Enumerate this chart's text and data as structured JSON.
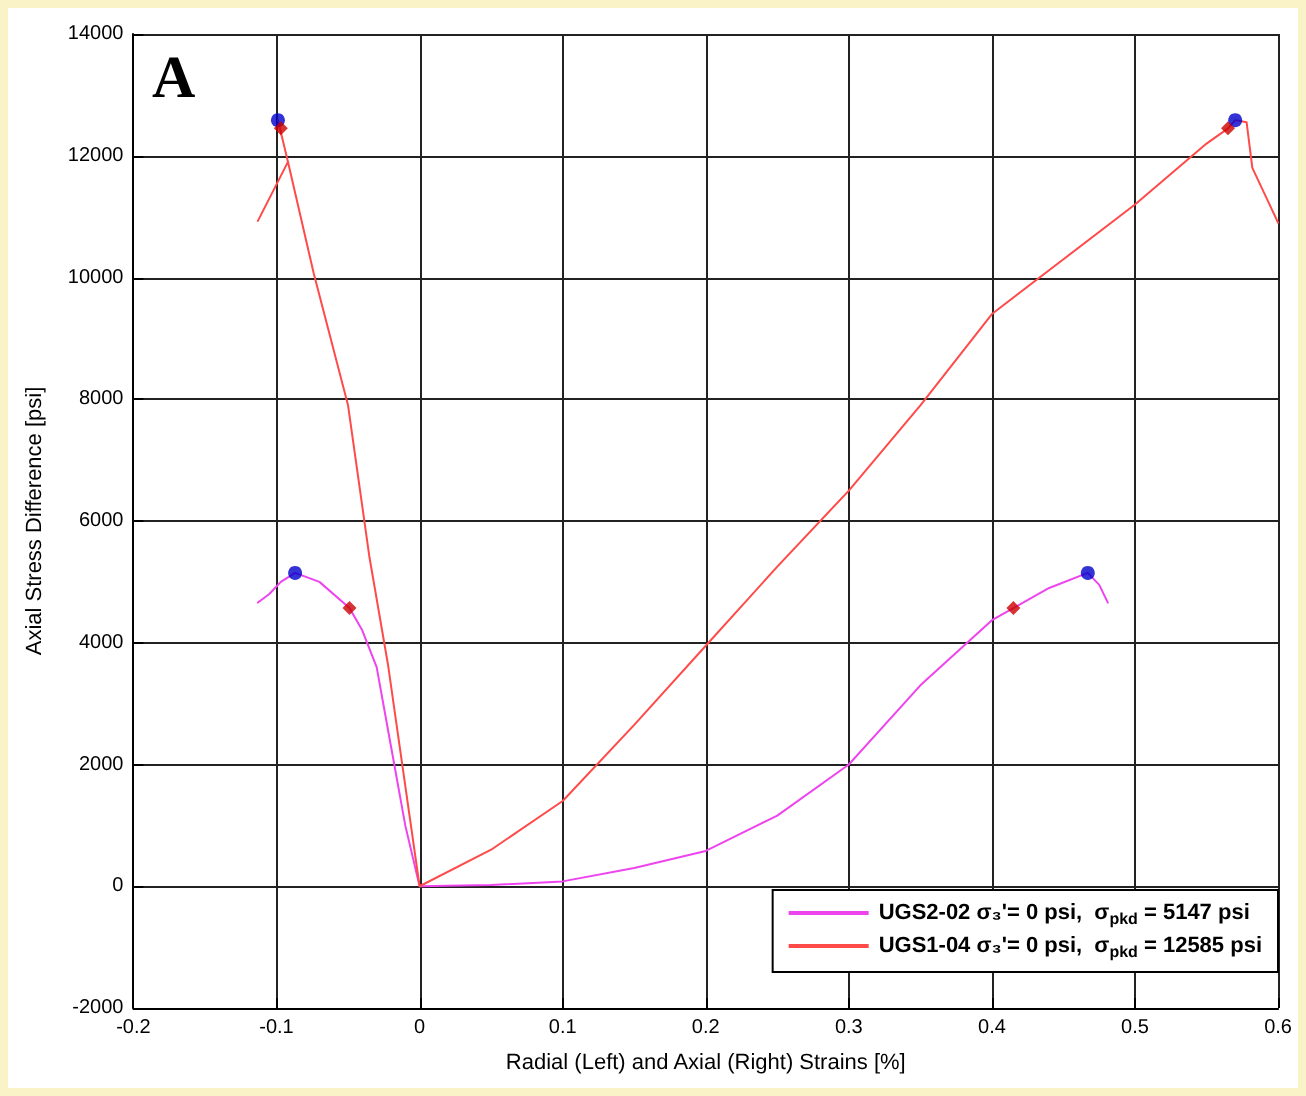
{
  "chart_data": {
    "type": "line",
    "xlabel": "Radial (Left) and Axial (Right) Strains [%]",
    "ylabel": "Axial Stress Difference [psi]",
    "annotations": [
      "A"
    ],
    "xlim": [
      -0.2,
      0.6
    ],
    "xticks": [
      -0.2,
      -0.1,
      0,
      0.1,
      0.2,
      0.3,
      0.4,
      0.5,
      0.6
    ],
    "ylim": [
      -2000,
      14000
    ],
    "yticks": [
      -2000,
      0,
      2000,
      4000,
      6000,
      8000,
      10000,
      12000,
      14000
    ],
    "grid": true,
    "legend": "bottom right",
    "marker": "none",
    "line_style": "solid",
    "series": [
      {
        "name": "UGS2-02 σ₃'= 0 psi,  σ$_{pk}$$_{d}$ = 5147 psi",
        "color": "#ee44ee",
        "x": [
          -0.113,
          -0.105,
          -0.097,
          -0.087,
          -0.07,
          -0.049,
          -0.04,
          -0.03,
          -0.02,
          -0.01,
          0,
          0.05,
          0.1,
          0.15,
          0.2,
          0.25,
          0.3,
          0.35,
          0.4,
          0.415,
          0.44,
          0.467,
          0.475,
          0.481
        ],
        "values": [
          4660,
          4800,
          5000,
          5147,
          5000,
          4570,
          4200,
          3600,
          2300,
          1000,
          0,
          20,
          80,
          300,
          580,
          1160,
          2000,
          3300,
          4370,
          4570,
          4900,
          5147,
          4950,
          4660
        ]
      },
      {
        "name": "UGS1-04 σ₃'= 0 psi,  σ$_{pk}$$_{d}$ = 12585 psi",
        "color": "#ff4a4a",
        "x": [
          -0.113,
          -0.092,
          -0.099,
          -0.092,
          -0.074,
          -0.05,
          -0.035,
          -0.022,
          0,
          0.05,
          0.1,
          0.15,
          0.2,
          0.25,
          0.3,
          0.35,
          0.4,
          0.45,
          0.5,
          0.55,
          0.565,
          0.57,
          0.578,
          0.582,
          0.6
        ],
        "values": [
          10930,
          11900,
          12585,
          11900,
          10070,
          7900,
          5400,
          3630,
          0,
          600,
          1400,
          2650,
          3950,
          5250,
          6500,
          7900,
          9400,
          10300,
          11200,
          12200,
          12450,
          12585,
          12550,
          11800,
          10900
        ]
      },
      {
        "type": "scatter",
        "marker": "circle",
        "color": "#0000cc",
        "x": [
          -0.099,
          -0.087,
          0.467,
          0.57
        ],
        "values": [
          12585,
          5147,
          5147,
          12585
        ]
      },
      {
        "type": "scatter",
        "marker": "diamond",
        "color": "#cc0000",
        "x": [
          -0.097,
          -0.049,
          0.415,
          0.565
        ],
        "values": [
          12450,
          4570,
          4570,
          12450
        ]
      }
    ]
  }
}
